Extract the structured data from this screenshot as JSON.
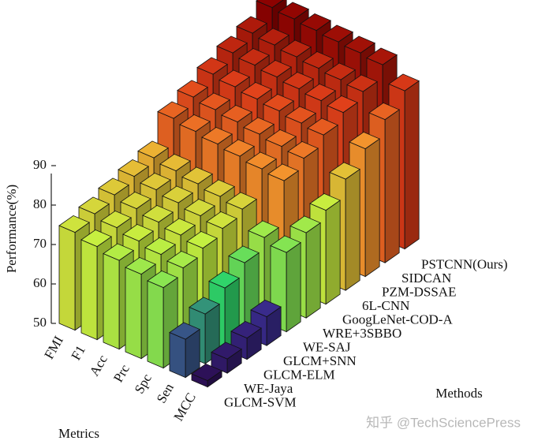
{
  "chart_data": {
    "type": "bar3d",
    "ylabel": "Performance(%)",
    "xlabel": "Metrics",
    "zlabel": "Methods",
    "categories": [
      "FMI",
      "F1",
      "Acc",
      "Prc",
      "Spc",
      "Sen",
      "MCC"
    ],
    "series": [
      {
        "name": "GLCM-SVM",
        "values": [
          74.8,
          73.6,
          72.5,
          71.4,
          70.4,
          59.7,
          51.6
        ]
      },
      {
        "name": "WE-Jaya",
        "values": [
          76.0,
          74.9,
          73.9,
          72.9,
          71.9,
          62.6,
          53.6
        ]
      },
      {
        "name": "GLCM-ELM",
        "values": [
          77.3,
          76.2,
          75.2,
          74.3,
          73.4,
          65.7,
          55.4
        ]
      },
      {
        "name": "GLCM+SNN",
        "values": [
          78.5,
          77.5,
          76.6,
          75.7,
          74.9,
          68.6,
          57.3
        ]
      },
      {
        "name": "WE-SAJ",
        "values": [
          79.7,
          78.8,
          77.9,
          77.1,
          76.3,
          71.5,
          70.1
        ]
      },
      {
        "name": "WRE+3SBBO",
        "values": [
          86.2,
          85.3,
          84.5,
          83.8,
          83.0,
          82.4,
          71.6
        ]
      },
      {
        "name": "GoogLeNet-COD-A",
        "values": [
          88.1,
          87.3,
          86.6,
          85.9,
          85.2,
          84.6,
          73.8
        ]
      },
      {
        "name": "6L-CNN",
        "values": [
          90.4,
          89.6,
          88.9,
          88.3,
          87.6,
          87.0,
          78.2
        ]
      },
      {
        "name": "PZM-DSSAE",
        "values": [
          92.3,
          91.6,
          91.0,
          90.4,
          89.8,
          89.2,
          82.4
        ]
      },
      {
        "name": "SIDCAN",
        "values": [
          93.8,
          93.2,
          92.6,
          92.1,
          91.6,
          91.0,
          86.3
        ]
      },
      {
        "name": "PSTCNN(Ours)",
        "values": [
          96.8,
          96.3,
          95.8,
          95.3,
          94.9,
          94.3,
          90.1
        ]
      }
    ],
    "ylim": [
      50,
      97
    ],
    "yticks": [
      50,
      60,
      70,
      80,
      90
    ],
    "colormap": [
      "#2a0a4a",
      "#3a2d90",
      "#2fd46a",
      "#c6f040",
      "#f6a030",
      "#e0401a",
      "#8a0000"
    ],
    "watermark": "知乎 @TechSciencePress"
  }
}
